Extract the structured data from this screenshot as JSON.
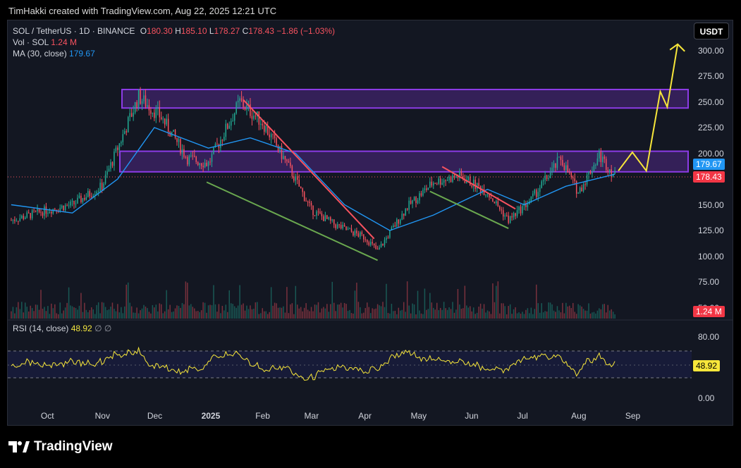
{
  "header": {
    "text": "TimHakki created with TradingView.com, Aug 22, 2025 12:21 UTC"
  },
  "legend": {
    "symbol": "SOL / TetherUS · 1D · BINANCE",
    "o_label": "O",
    "o": "180.30",
    "h_label": "H",
    "h": "185.10",
    "l_label": "L",
    "l": "178.27",
    "c_label": "C",
    "c": "178.43",
    "change": "−1.86 (−1.03%)",
    "vol_label": "Vol · SOL",
    "vol": "1.24 M",
    "ma_label": "MA (30, close)",
    "ma": "179.67",
    "rsi_label": "RSI (14, close)",
    "rsi": "48.92",
    "rsi_icons": "∅ ∅"
  },
  "currency_button": "USDT",
  "price_axis": [
    "300.00",
    "275.00",
    "250.00",
    "225.00",
    "200.00",
    "150.00",
    "125.00",
    "100.00",
    "75.00",
    "50.00"
  ],
  "rsi_axis": [
    "80.00",
    "0.00"
  ],
  "tags": {
    "ma": "179.67",
    "price": "178.43",
    "vol": "1.24 M",
    "rsi": "48.92"
  },
  "x_axis": [
    "Oct",
    "Nov",
    "Dec",
    "2025",
    "Feb",
    "Mar",
    "Apr",
    "May",
    "Jun",
    "Jul",
    "Aug",
    "Sep"
  ],
  "logo": "TradingView",
  "colors": {
    "up": "#22ab94",
    "down": "#f7525f",
    "ma": "#2196f3",
    "zone": "#8c3be6",
    "arrow": "#f7e63a",
    "rsi": "#f7e63a",
    "support": "#6aa84f"
  },
  "chart_data": {
    "type": "candlestick",
    "symbol": "SOL / TetherUS",
    "timeframe": "1D",
    "exchange": "BINANCE",
    "x_range": [
      "2024-09-08",
      "2025-10-05"
    ],
    "ylim": [
      50,
      310
    ],
    "series": [
      {
        "name": "price (close, approx)",
        "x": [
          "2024-09-10",
          "2024-10-01",
          "2024-10-15",
          "2024-11-01",
          "2024-11-10",
          "2024-11-22",
          "2024-12-05",
          "2024-12-20",
          "2025-01-01",
          "2025-01-19",
          "2025-02-01",
          "2025-02-15",
          "2025-03-01",
          "2025-03-15",
          "2025-04-01",
          "2025-04-08",
          "2025-04-25",
          "2025-05-10",
          "2025-05-25",
          "2025-06-10",
          "2025-06-22",
          "2025-07-05",
          "2025-07-22",
          "2025-08-01",
          "2025-08-13",
          "2025-08-22"
        ],
        "values": [
          135,
          145,
          150,
          168,
          205,
          255,
          235,
          195,
          190,
          250,
          230,
          190,
          145,
          130,
          118,
          105,
          148,
          172,
          178,
          162,
          135,
          155,
          195,
          162,
          198,
          178.43
        ]
      },
      {
        "name": "MA (30, close)",
        "x": [
          "2024-09-10",
          "2024-10-15",
          "2024-11-10",
          "2024-12-01",
          "2025-01-01",
          "2025-01-25",
          "2025-02-20",
          "2025-03-20",
          "2025-04-15",
          "2025-05-10",
          "2025-06-10",
          "2025-07-01",
          "2025-07-25",
          "2025-08-22"
        ],
        "values": [
          150,
          142,
          175,
          225,
          205,
          215,
          200,
          150,
          125,
          140,
          165,
          150,
          168,
          179.67
        ]
      }
    ],
    "zones": [
      {
        "name": "resistance",
        "range": [
          244,
          262
        ]
      },
      {
        "name": "support",
        "range": [
          182,
          202
        ]
      }
    ],
    "projection": {
      "x": [
        "2025-08-24",
        "2025-09-01",
        "2025-09-09",
        "2025-09-17",
        "2025-09-21",
        "2025-09-27"
      ],
      "values": [
        183,
        201,
        183,
        260,
        245,
        306
      ]
    },
    "rsi": {
      "name": "RSI (14, close)",
      "value": 48.92,
      "bands": [
        30,
        70
      ]
    }
  }
}
